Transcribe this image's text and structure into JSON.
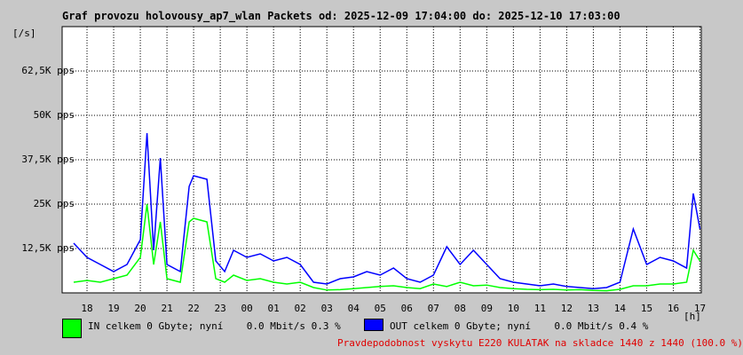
{
  "chart_data": {
    "type": "line",
    "title": "Graf provozu holovousy_ap7_wlan Packets od: 2025-12-09 17:04:00 do: 2025-12-10 17:03:00",
    "ylabel": "[/s]",
    "xlabel": "[h]",
    "ylim": [
      0,
      75000
    ],
    "y_ticks": [
      {
        "value": 12500,
        "label": "12,5K pps"
      },
      {
        "value": 25000,
        "label": "25K pps"
      },
      {
        "value": 37500,
        "label": "37,5K pps"
      },
      {
        "value": 50000,
        "label": "50K pps"
      },
      {
        "value": 62500,
        "label": "62,5K pps"
      }
    ],
    "x_ticks": [
      "18",
      "19",
      "20",
      "21",
      "22",
      "23",
      "00",
      "01",
      "02",
      "03",
      "04",
      "05",
      "06",
      "07",
      "08",
      "09",
      "10",
      "11",
      "12",
      "13",
      "14",
      "15",
      "16",
      "17"
    ],
    "x": [
      "17:30",
      "18:00",
      "18:30",
      "19:00",
      "19:30",
      "20:00",
      "20:15",
      "20:30",
      "20:45",
      "21:00",
      "21:30",
      "21:50",
      "22:00",
      "22:30",
      "22:50",
      "23:10",
      "23:30",
      "00:00",
      "00:30",
      "01:00",
      "01:30",
      "02:00",
      "02:30",
      "03:00",
      "03:30",
      "04:00",
      "04:30",
      "05:00",
      "05:30",
      "06:00",
      "06:30",
      "07:00",
      "07:30",
      "08:00",
      "08:30",
      "09:00",
      "09:30",
      "10:00",
      "10:30",
      "11:00",
      "11:30",
      "12:00",
      "12:30",
      "13:00",
      "13:30",
      "14:00",
      "14:30",
      "15:00",
      "15:30",
      "16:00",
      "16:30",
      "16:45",
      "17:00"
    ],
    "grid": true,
    "series": [
      {
        "name": "IN",
        "color": "#00ff00",
        "values": [
          3000,
          3500,
          3000,
          4000,
          5000,
          10000,
          25000,
          8000,
          20000,
          4000,
          3000,
          20000,
          21000,
          20000,
          4000,
          3000,
          5000,
          3500,
          4000,
          3000,
          2500,
          3000,
          1500,
          800,
          900,
          1200,
          1500,
          1800,
          2000,
          1500,
          1200,
          2500,
          1800,
          3000,
          2000,
          2200,
          1500,
          1200,
          1000,
          900,
          1000,
          800,
          900,
          700,
          600,
          1000,
          2000,
          2000,
          2500,
          2500,
          3000,
          12000,
          9000
        ]
      },
      {
        "name": "OUT",
        "color": "#0000ff",
        "values": [
          14000,
          10000,
          8000,
          6000,
          8000,
          15000,
          45000,
          12000,
          38000,
          8000,
          6000,
          30000,
          33000,
          32000,
          9000,
          6000,
          12000,
          10000,
          11000,
          9000,
          10000,
          8000,
          3000,
          2500,
          4000,
          4500,
          6000,
          5000,
          7000,
          4000,
          3000,
          5000,
          13000,
          8000,
          12000,
          8000,
          4000,
          3000,
          2500,
          2000,
          2500,
          1800,
          1500,
          1200,
          1500,
          3000,
          18000,
          8000,
          10000,
          9000,
          7000,
          28000,
          18000
        ]
      }
    ],
    "legend": [
      {
        "label": "IN celkem 0 Gbyte; nyní    0.0 Mbit/s 0.3 %",
        "color": "#00ff00"
      },
      {
        "label": "OUT celkem 0 Gbyte; nyní    0.0 Mbit/s 0.4 %",
        "color": "#0000ff"
      }
    ],
    "footer": "Pravdepodobnost vyskytu E220 KULATAK na skladce 1440 z 1440 (100.0 %)"
  }
}
